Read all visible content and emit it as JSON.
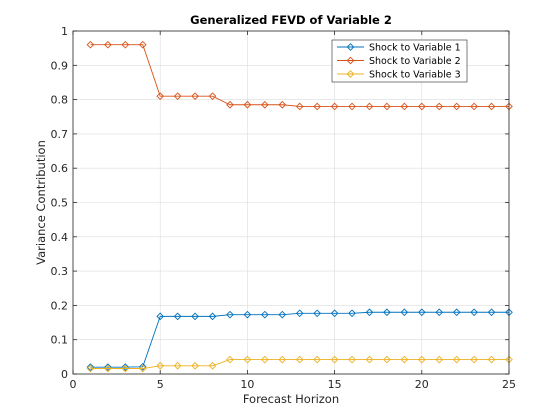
{
  "chart_data": {
    "type": "line",
    "title": "Generalized FEVD of Variable 2",
    "xlabel": "Forecast Horizon",
    "ylabel": "Variance Contribution",
    "xlim": [
      0,
      25
    ],
    "ylim": [
      0,
      1
    ],
    "xticks": [
      "0",
      "5",
      "10",
      "15",
      "20",
      "25"
    ],
    "yticks": [
      "0",
      "0.1",
      "0.2",
      "0.3",
      "0.4",
      "0.5",
      "0.6",
      "0.7",
      "0.8",
      "0.9",
      "1"
    ],
    "grid": true,
    "legend_position": "top-right",
    "marker": "diamond",
    "x": [
      1,
      2,
      3,
      4,
      5,
      6,
      7,
      8,
      9,
      10,
      11,
      12,
      13,
      14,
      15,
      16,
      17,
      18,
      19,
      20,
      21,
      22,
      23,
      24,
      25
    ],
    "series": [
      {
        "name": "Shock to Variable 1",
        "color": "#0072BD",
        "values": [
          0.02,
          0.02,
          0.02,
          0.021,
          0.168,
          0.168,
          0.168,
          0.168,
          0.173,
          0.173,
          0.173,
          0.173,
          0.177,
          0.177,
          0.177,
          0.177,
          0.18,
          0.18,
          0.18,
          0.18,
          0.18,
          0.18,
          0.18,
          0.18,
          0.18
        ]
      },
      {
        "name": "Shock to Variable 2",
        "color": "#D95319",
        "values": [
          0.96,
          0.96,
          0.96,
          0.96,
          0.81,
          0.81,
          0.81,
          0.81,
          0.785,
          0.785,
          0.785,
          0.785,
          0.78,
          0.78,
          0.78,
          0.78,
          0.78,
          0.78,
          0.78,
          0.78,
          0.78,
          0.78,
          0.78,
          0.78,
          0.78
        ]
      },
      {
        "name": "Shock to Variable 3",
        "color": "#EDB120",
        "values": [
          0.016,
          0.016,
          0.016,
          0.016,
          0.024,
          0.024,
          0.024,
          0.024,
          0.042,
          0.042,
          0.042,
          0.042,
          0.042,
          0.042,
          0.042,
          0.042,
          0.042,
          0.042,
          0.042,
          0.042,
          0.042,
          0.042,
          0.042,
          0.042,
          0.042
        ]
      }
    ]
  }
}
